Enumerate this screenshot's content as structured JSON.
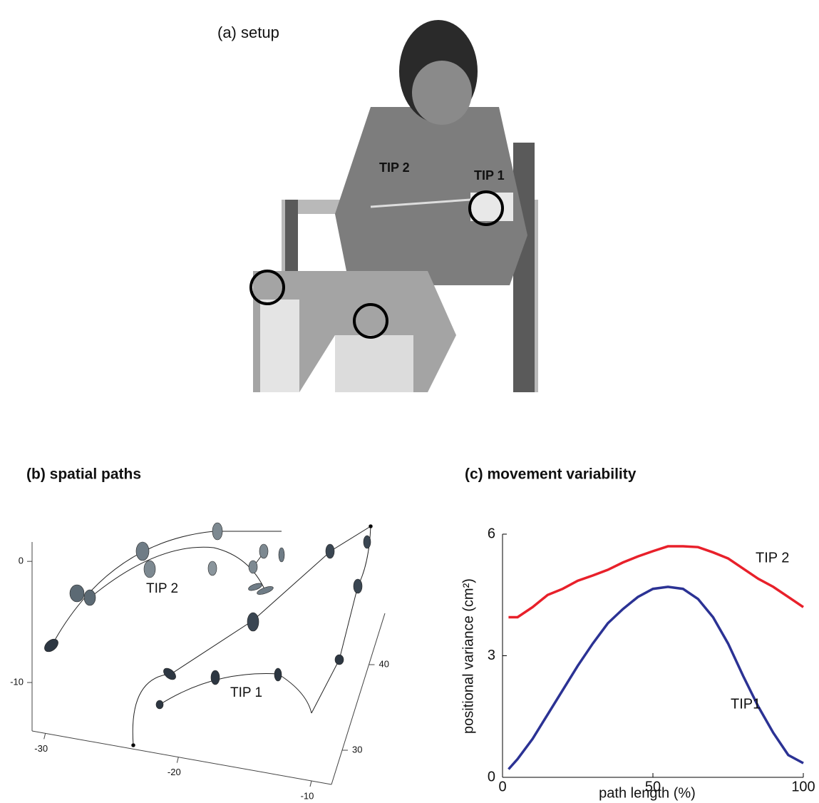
{
  "panel_a": {
    "title": "(a) setup",
    "labels": [
      "TIP 2",
      "TIP 1"
    ]
  },
  "chart_data": [
    {
      "type": "path3d",
      "title": "(b) spatial paths",
      "annotations": [
        "TIP 2",
        "TIP 1"
      ],
      "zlim": [
        1.6,
        -14
      ],
      "zticks": [
        0,
        -10
      ],
      "xlim": [
        -31,
        -8.5
      ],
      "xticks": [
        -30,
        -20,
        -10
      ],
      "ylim": [
        26,
        46
      ],
      "yticks": [
        30,
        40
      ]
    },
    {
      "type": "line",
      "title": "(c) movement variability",
      "x_label": "path length (%)",
      "y_label": "positional variance (cm²)",
      "xlim": [
        0,
        100
      ],
      "xticks": [
        0,
        50,
        100
      ],
      "ylim": [
        0,
        6
      ],
      "yticks": [
        0,
        3,
        6
      ],
      "x": [
        2,
        5,
        10,
        15,
        20,
        25,
        30,
        35,
        40,
        45,
        50,
        55,
        60,
        65,
        70,
        75,
        80,
        85,
        90,
        95,
        100
      ],
      "series": [
        {
          "name": "TIP 2",
          "color": "#e8202a",
          "values": [
            3.95,
            3.95,
            4.2,
            4.5,
            4.65,
            4.85,
            4.98,
            5.12,
            5.3,
            5.45,
            5.58,
            5.7,
            5.7,
            5.68,
            5.55,
            5.4,
            5.15,
            4.9,
            4.7,
            4.45,
            4.2
          ]
        },
        {
          "name": "TIP1",
          "color": "#2b3294",
          "values": [
            0.2,
            0.45,
            0.95,
            1.55,
            2.15,
            2.75,
            3.3,
            3.8,
            4.15,
            4.45,
            4.65,
            4.7,
            4.65,
            4.4,
            3.95,
            3.3,
            2.5,
            1.75,
            1.1,
            0.55,
            0.35
          ]
        }
      ]
    }
  ]
}
